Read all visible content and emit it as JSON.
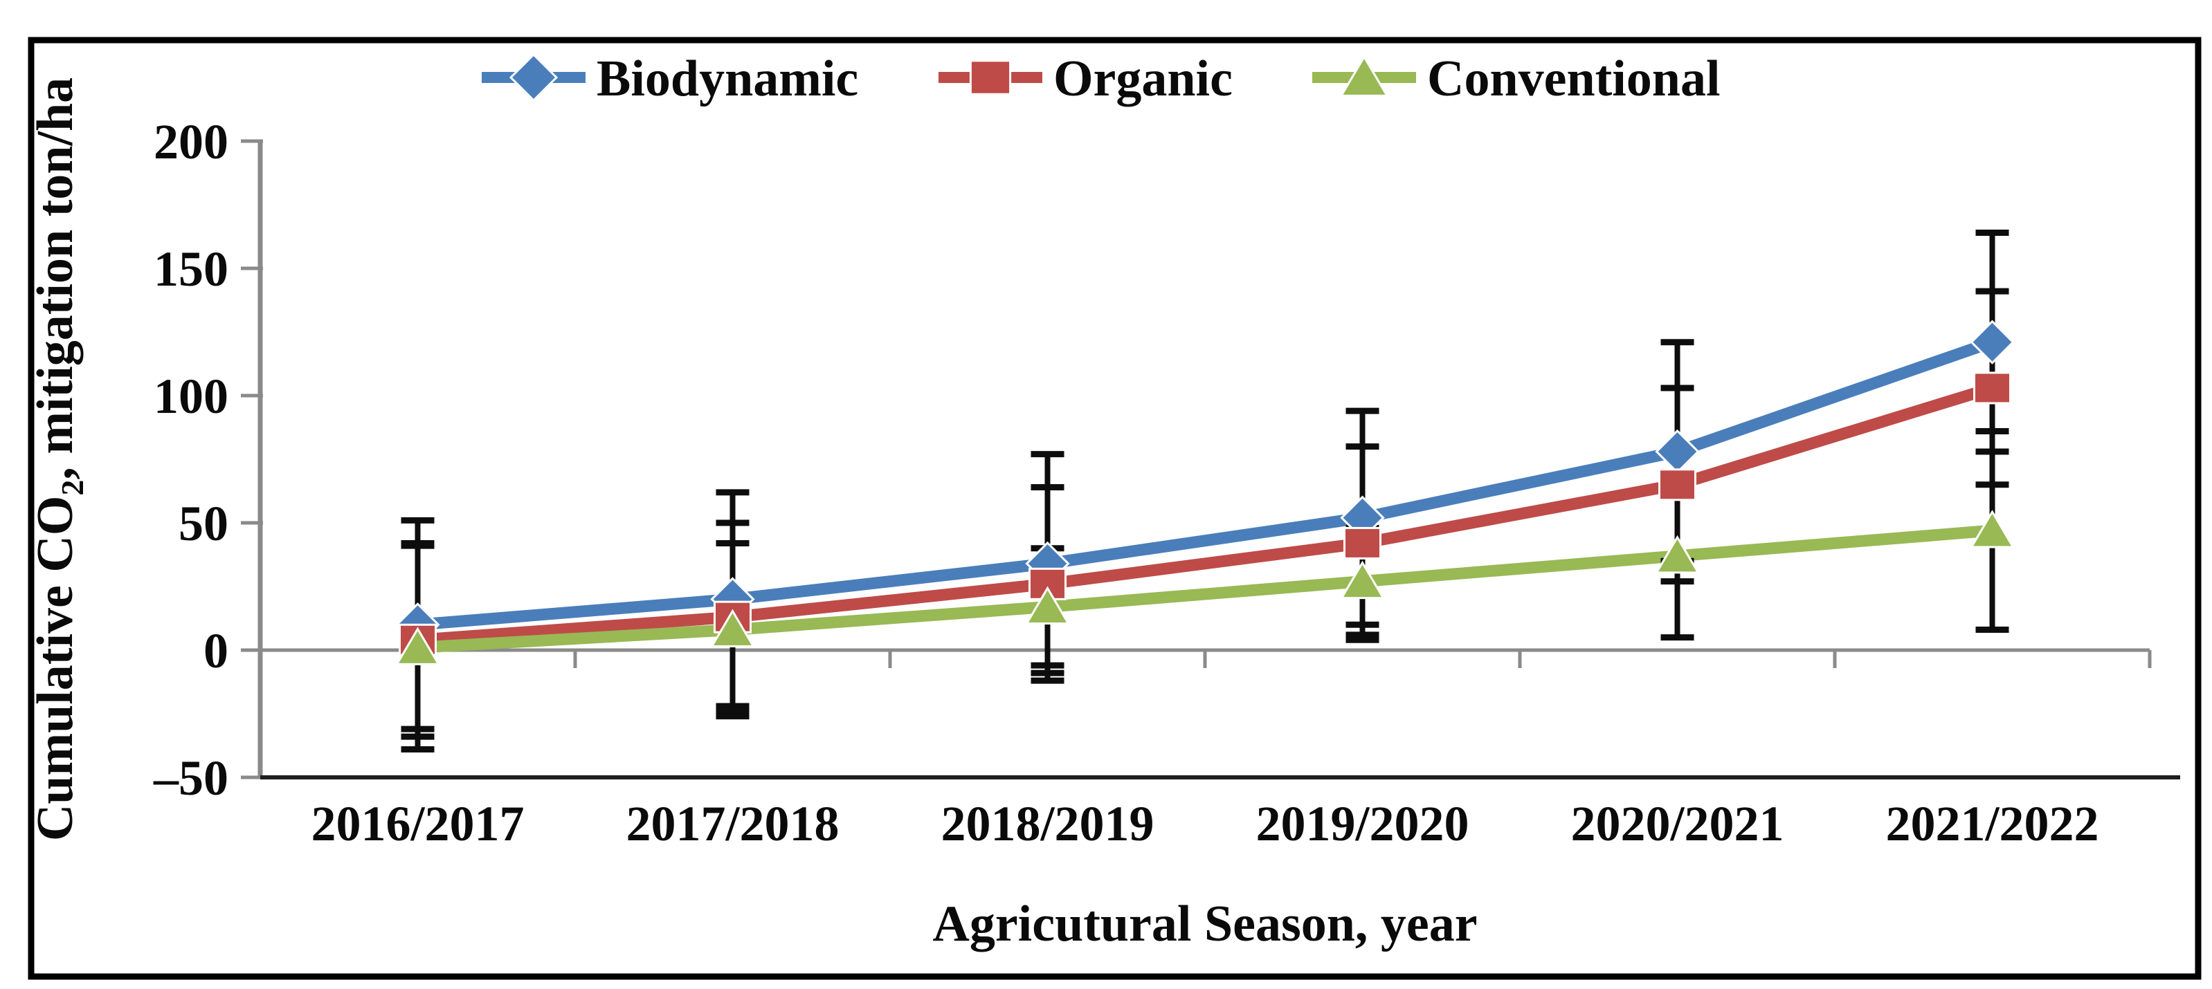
{
  "figure": {
    "border_color": "#000000",
    "background_color": "#ffffff"
  },
  "chart_data": {
    "type": "line",
    "title": "",
    "xlabel": "Agricutural  Season, year",
    "ylabel_parts": {
      "prefix": "Cumulative CO",
      "subscript": "2",
      "suffix": ", mitigation ton/ha"
    },
    "categories": [
      "2016/2017",
      "2017/2018",
      "2018/2019",
      "2019/2020",
      "2020/2021",
      "2021/2022"
    ],
    "series": [
      {
        "name": "Biodynamic",
        "color": "#4A7EBB",
        "marker": "diamond",
        "values": [
          10,
          20,
          34,
          52,
          78,
          121
        ],
        "error": [
          41,
          42,
          43,
          42,
          43,
          43
        ]
      },
      {
        "name": "Organic",
        "color": "#BE4B48",
        "marker": "square",
        "values": [
          4,
          13,
          26,
          42,
          65,
          103
        ],
        "error": [
          38,
          37,
          38,
          38,
          38,
          38
        ]
      },
      {
        "name": "Conventional",
        "color": "#98B954",
        "marker": "triangle",
        "values": [
          1,
          8,
          17,
          27,
          37,
          47
        ],
        "error": [
          40,
          34,
          23,
          21,
          32,
          39
        ]
      }
    ],
    "y_ticks": {
      "values": [
        200,
        150,
        100,
        50,
        0,
        -50
      ],
      "labels": [
        "200",
        "150",
        "100",
        "50",
        "0",
        "–50"
      ]
    },
    "ylim": [
      -50,
      200
    ],
    "grid": "zero-axis-only",
    "legend_position": "top-center",
    "error_bar_color": "#0d0d0d",
    "axis_color": "#8a8a8a",
    "bottom_border_color": "#1f1f1f"
  }
}
